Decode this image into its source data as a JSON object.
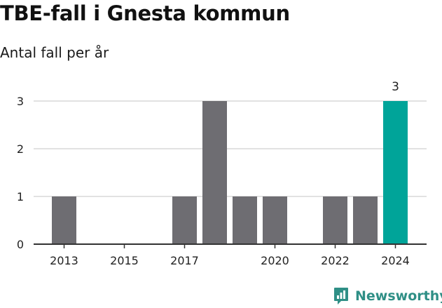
{
  "chart_data": {
    "type": "bar",
    "title": "TBE-fall i Gnesta kommun",
    "subtitle": "Antal fall per år",
    "categories": [
      "2013",
      "2014",
      "2015",
      "2016",
      "2017",
      "2018",
      "2019",
      "2020",
      "2021",
      "2022",
      "2023",
      "2024"
    ],
    "values": [
      1,
      0,
      0,
      0,
      1,
      3,
      1,
      1,
      0,
      1,
      1,
      3
    ],
    "x_tick_labels": [
      "2013",
      "2015",
      "2017",
      "2020",
      "2022",
      "2024"
    ],
    "y_ticks": [
      0,
      1,
      2,
      3
    ],
    "ylim": [
      0,
      3
    ],
    "xlabel": "",
    "ylabel": "",
    "grid": true,
    "highlight_index": 11,
    "data_labels": [
      {
        "index": 11,
        "text": "3"
      }
    ],
    "colors": {
      "bar": "#6e6d72",
      "highlight": "#00a499",
      "grid": "#d9d9d9",
      "axis": "#333333"
    }
  },
  "brand": {
    "name": "Newsworthy",
    "icon": "newsworthy-logo-icon",
    "color": "#2f8f86"
  }
}
